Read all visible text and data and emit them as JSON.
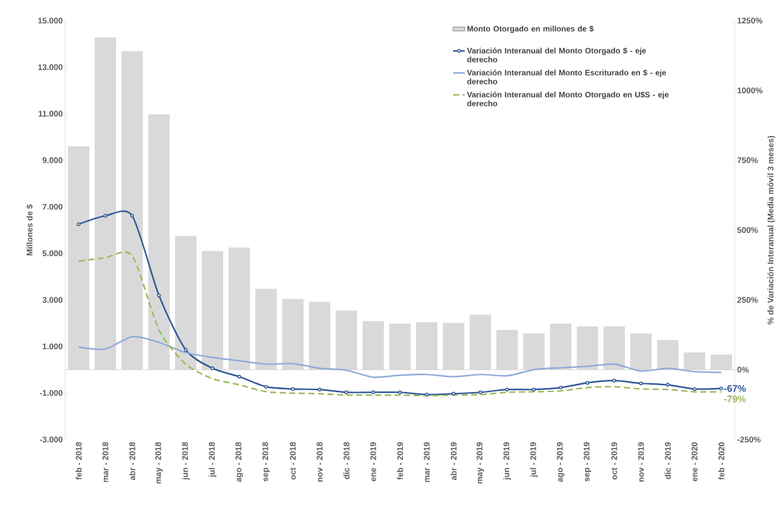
{
  "chart_data": {
    "type": "bar",
    "ylabel": "Millones de $",
    "y2label": "% de Variación Interanual (Media móvil 3 meses)",
    "categories": [
      "feb - 2018",
      "mar - 2018",
      "abr - 2018",
      "may - 2018",
      "jun - 2018",
      "jul - 2018",
      "ago - 2018",
      "sep - 2018",
      "oct - 2018",
      "nov - 2018",
      "dic - 2018",
      "ene - 2019",
      "feb - 2019",
      "mar - 2019",
      "abr - 2019",
      "may - 2019",
      "jun - 2019",
      "jul - 2019",
      "ago - 2019",
      "sep - 2019",
      "oct - 2019",
      "nov - 2019",
      "dic - 2019",
      "ene - 2020",
      "feb - 2020"
    ],
    "ylim": [
      -3000,
      15000
    ],
    "yticks": [
      {
        "value": 15000,
        "label": "15.000"
      },
      {
        "value": 13000,
        "label": "13.000"
      },
      {
        "value": 11000,
        "label": "11.000"
      },
      {
        "value": 9000,
        "label": "9.000"
      },
      {
        "value": 7000,
        "label": "7.000"
      },
      {
        "value": 5000,
        "label": "5.000"
      },
      {
        "value": 3000,
        "label": "3.000"
      },
      {
        "value": 1000,
        "label": "1.000"
      },
      {
        "value": -1000,
        "label": "-1.000"
      },
      {
        "value": -3000,
        "label": "-3.000"
      }
    ],
    "y2lim": [
      -250,
      1250
    ],
    "y2ticks": [
      {
        "value": 1250,
        "label": "1250%"
      },
      {
        "value": 1000,
        "label": "1000%"
      },
      {
        "value": 750,
        "label": "750%"
      },
      {
        "value": 500,
        "label": "500%"
      },
      {
        "value": 250,
        "label": "250%"
      },
      {
        "value": 0,
        "label": "0%"
      },
      {
        "value": -250,
        "label": "-250%"
      }
    ],
    "legend": "top right",
    "series": [
      {
        "name": "Monto Otorgado en millones de $",
        "color": "#d9d9d9",
        "values": [
          9600,
          14280,
          13690,
          10970,
          5750,
          5100,
          5250,
          3480,
          3040,
          2920,
          2540,
          2090,
          1980,
          2040,
          2010,
          2360,
          1710,
          1560,
          1980,
          1860,
          1860,
          1560,
          1270,
          740,
          650
        ]
      },
      {
        "name": "Variación Interanual del Monto Otorgado $ - eje derecho",
        "type": "line",
        "axis": "y2",
        "color": "#2f5597",
        "marker": "circle",
        "values": [
          521,
          551,
          551,
          266,
          71,
          5,
          -25,
          -61,
          -69,
          -71,
          -81,
          -81,
          -81,
          -89,
          -86,
          -81,
          -71,
          -71,
          -64,
          -47,
          -39,
          -49,
          -54,
          -69,
          -67
        ],
        "value_labels": [
          null,
          null,
          null,
          null,
          null,
          null,
          null,
          null,
          null,
          null,
          null,
          null,
          null,
          null,
          null,
          null,
          null,
          null,
          null,
          null,
          null,
          null,
          null,
          null,
          "-67%"
        ]
      },
      {
        "name": "Variación Interanual del Monto Escriturado en $ - eje derecho",
        "type": "line",
        "axis": "y2",
        "color": "#8eaadb",
        "values": [
          81,
          74,
          118,
          98,
          61,
          44,
          32,
          20,
          22,
          5,
          -2,
          -27,
          -20,
          -17,
          -25,
          -17,
          -22,
          0,
          7,
          12,
          20,
          -5,
          5,
          -7,
          -10
        ]
      },
      {
        "name": "Variación Interanual del Monto Otorgado en U$S - eje derecho",
        "type": "line",
        "axis": "y2",
        "color": "#9bbb59",
        "line_style": "dashed",
        "values": [
          388,
          401,
          408,
          143,
          20,
          -32,
          -54,
          -79,
          -84,
          -86,
          -91,
          -91,
          -91,
          -93,
          -91,
          -89,
          -81,
          -79,
          -76,
          -64,
          -61,
          -69,
          -71,
          -79,
          -79
        ],
        "value_labels": [
          null,
          null,
          null,
          null,
          null,
          null,
          null,
          null,
          null,
          null,
          null,
          null,
          null,
          null,
          null,
          null,
          null,
          null,
          null,
          null,
          null,
          null,
          null,
          null,
          "-79%"
        ]
      }
    ]
  }
}
